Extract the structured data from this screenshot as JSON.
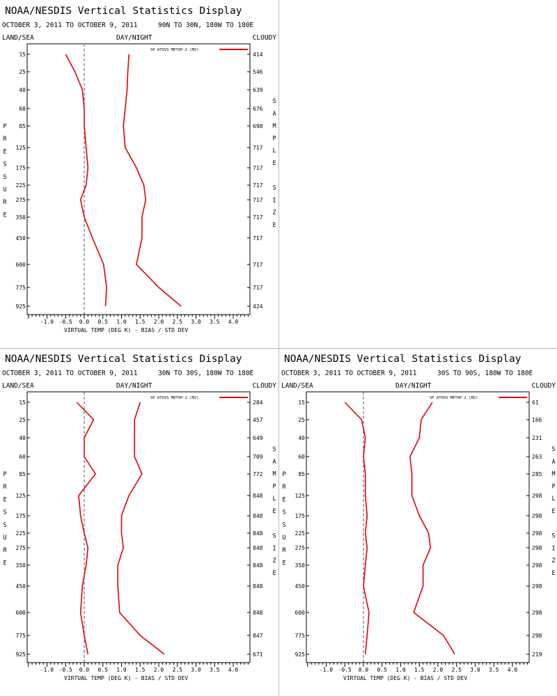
{
  "panels": [
    {
      "id": "tl",
      "title": "NOAA/NESDIS Vertical Statistics Display",
      "date_range": "OCTOBER 3, 2011 TO OCTOBER 9, 2011",
      "region": "90N TO 30N, 180W TO 180E",
      "land_sea": "LAND/SEA",
      "day_night": "DAY/NIGHT",
      "cloudy": "CLOUDY",
      "y_axis_label": "PRESSURE",
      "right_axis_label": "SAMPLE SIZE",
      "x_axis_label": "VIRTUAL TEMP (DEG K) - BIAS / STD DEV",
      "legend_label": "SP ATOVS METOP-2 (M2)",
      "line_color": "#e00000"
    },
    {
      "id": "bl",
      "title": "NOAA/NESDIS Vertical Statistics Display",
      "date_range": "OCTOBER 3, 2011 TO OCTOBER 9, 2011",
      "region": "30N TO 30S, 180W TO 180E",
      "land_sea": "LAND/SEA",
      "day_night": "DAY/NIGHT",
      "cloudy": "CLOUDY",
      "y_axis_label": "PRESSURE",
      "right_axis_label": "SAMPLE SIZE",
      "x_axis_label": "VIRTUAL TEMP (DEG K) - BIAS / STD DEV",
      "legend_label": "SP ATOVS METOP-2 (M2)",
      "line_color": "#e00000"
    },
    {
      "id": "br",
      "title": "NOAA/NESDIS Vertical Statistics Display",
      "date_range": "OCTOBER 3, 2011 TO OCTOBER 9, 2011",
      "region": "30S TO 90S, 180W TO 180E",
      "land_sea": "LAND/SEA",
      "day_night": "DAY/NIGHT",
      "cloudy": "CLOUDY",
      "y_axis_label": "PRESSURE",
      "right_axis_label": "SAMPLE SIZE",
      "x_axis_label": "VIRTUAL TEMP (DEG K) - BIAS / STD DEV",
      "legend_label": "SP ATOVS METOP-2 (M2)",
      "line_color": "#e00000"
    }
  ],
  "chart_data": [
    {
      "type": "line",
      "region": "90N TO 30N, 180W TO 180E",
      "xlabel": "VIRTUAL TEMP (DEG K) - BIAS / STD DEV",
      "ylabel": "PRESSURE",
      "xlim": [
        -1.5,
        4.5
      ],
      "x_ticks": [
        "-1.0",
        "-0.5",
        "0.0",
        "0.5",
        "1.0",
        "1.5",
        "2.0",
        "2.5",
        "3.0",
        "3.5",
        "4.0"
      ],
      "pressure_levels": [
        "15",
        "25",
        "40",
        "60",
        "85",
        "125",
        "175",
        "225",
        "275",
        "350",
        "450",
        "600",
        "775",
        "925"
      ],
      "sample_size": [
        "414",
        "546",
        "639",
        "676",
        "698",
        "717",
        "717",
        "717",
        "717",
        "717",
        "717",
        "717",
        "717",
        "424"
      ],
      "series": [
        {
          "name": "SP ATOVS METOP-2 (M2)",
          "values": [
            [
              -0.5,
              15
            ],
            [
              -0.25,
              25
            ],
            [
              -0.05,
              40
            ],
            [
              0.0,
              60
            ],
            [
              0.0,
              85
            ],
            [
              0.05,
              125
            ],
            [
              0.1,
              175
            ],
            [
              0.05,
              225
            ],
            [
              -0.1,
              275
            ],
            [
              0.0,
              350
            ],
            [
              0.22,
              450
            ],
            [
              0.52,
              600
            ],
            [
              0.6,
              775
            ],
            [
              0.57,
              925
            ]
          ]
        },
        {
          "values": [
            [
              1.2,
              15
            ],
            [
              1.17,
              25
            ],
            [
              1.15,
              40
            ],
            [
              1.1,
              60
            ],
            [
              1.05,
              85
            ],
            [
              1.1,
              125
            ],
            [
              1.4,
              175
            ],
            [
              1.6,
              225
            ],
            [
              1.65,
              275
            ],
            [
              1.55,
              350
            ],
            [
              1.55,
              450
            ],
            [
              1.4,
              600
            ],
            [
              2.0,
              775
            ],
            [
              2.6,
              925
            ]
          ]
        }
      ]
    },
    {
      "type": "line",
      "region": "30N TO 30S, 180W TO 180E",
      "xlabel": "VIRTUAL TEMP (DEG K) - BIAS / STD DEV",
      "ylabel": "PRESSURE",
      "xlim": [
        -1.5,
        4.5
      ],
      "x_ticks": [
        "-1.0",
        "-0.5",
        "0.0",
        "0.5",
        "1.0",
        "1.5",
        "2.0",
        "2.5",
        "3.0",
        "3.5",
        "4.0"
      ],
      "pressure_levels": [
        "15",
        "25",
        "40",
        "60",
        "85",
        "125",
        "175",
        "225",
        "275",
        "350",
        "450",
        "600",
        "775",
        "925"
      ],
      "sample_size": [
        "284",
        "457",
        "649",
        "709",
        "772",
        "848",
        "848",
        "848",
        "848",
        "848",
        "848",
        "848",
        "847",
        "671"
      ],
      "series": [
        {
          "name": "SP ATOVS METOP-2 (M2)",
          "values": [
            [
              -0.2,
              15
            ],
            [
              0.25,
              25
            ],
            [
              0.0,
              40
            ],
            [
              0.0,
              60
            ],
            [
              0.3,
              85
            ],
            [
              -0.15,
              125
            ],
            [
              -0.1,
              175
            ],
            [
              0.0,
              225
            ],
            [
              0.1,
              275
            ],
            [
              0.05,
              350
            ],
            [
              -0.05,
              450
            ],
            [
              -0.1,
              600
            ],
            [
              0.0,
              775
            ],
            [
              0.1,
              925
            ]
          ]
        },
        {
          "values": [
            [
              1.5,
              15
            ],
            [
              1.35,
              25
            ],
            [
              1.35,
              40
            ],
            [
              1.35,
              60
            ],
            [
              1.55,
              85
            ],
            [
              1.2,
              125
            ],
            [
              1.0,
              175
            ],
            [
              1.0,
              225
            ],
            [
              1.05,
              275
            ],
            [
              0.9,
              350
            ],
            [
              0.9,
              450
            ],
            [
              0.95,
              600
            ],
            [
              1.5,
              775
            ],
            [
              2.15,
              925
            ]
          ]
        }
      ]
    },
    {
      "type": "line",
      "region": "30S TO 90S, 180W TO 180E",
      "xlabel": "VIRTUAL TEMP (DEG K) - BIAS / STD DEV",
      "ylabel": "PRESSURE",
      "xlim": [
        -1.5,
        4.5
      ],
      "x_ticks": [
        "-1.0",
        "-0.5",
        "0.0",
        "0.5",
        "1.0",
        "1.5",
        "2.0",
        "2.5",
        "3.0",
        "3.5",
        "4.0"
      ],
      "pressure_levels": [
        "15",
        "25",
        "40",
        "60",
        "85",
        "125",
        "175",
        "225",
        "275",
        "350",
        "450",
        "600",
        "775",
        "925"
      ],
      "sample_size": [
        "61",
        "166",
        "231",
        "263",
        "285",
        "298",
        "298",
        "298",
        "298",
        "298",
        "298",
        "298",
        "298",
        "219"
      ],
      "series": [
        {
          "name": "SP ATOVS METOP-2 (M2)",
          "values": [
            [
              -0.5,
              15
            ],
            [
              -0.05,
              25
            ],
            [
              0.05,
              40
            ],
            [
              0.0,
              60
            ],
            [
              0.05,
              85
            ],
            [
              0.05,
              125
            ],
            [
              0.1,
              175
            ],
            [
              0.05,
              225
            ],
            [
              0.1,
              275
            ],
            [
              0.05,
              350
            ],
            [
              0.0,
              450
            ],
            [
              0.15,
              600
            ],
            [
              0.1,
              775
            ],
            [
              0.05,
              925
            ]
          ]
        },
        {
          "values": [
            [
              1.85,
              15
            ],
            [
              1.55,
              25
            ],
            [
              1.5,
              40
            ],
            [
              1.25,
              60
            ],
            [
              1.3,
              85
            ],
            [
              1.3,
              125
            ],
            [
              1.5,
              175
            ],
            [
              1.75,
              225
            ],
            [
              1.8,
              275
            ],
            [
              1.6,
              350
            ],
            [
              1.6,
              450
            ],
            [
              1.35,
              600
            ],
            [
              2.15,
              775
            ],
            [
              2.45,
              925
            ]
          ]
        }
      ]
    }
  ]
}
